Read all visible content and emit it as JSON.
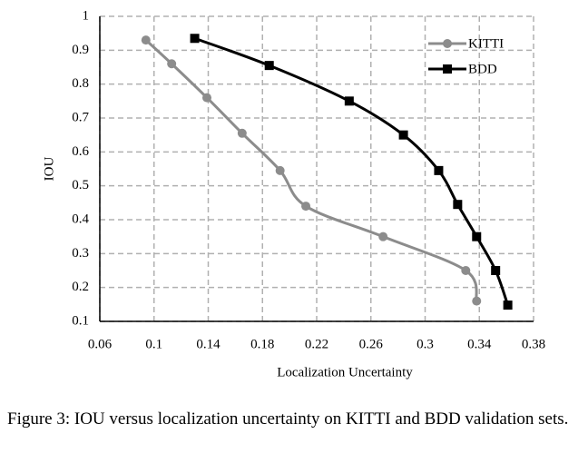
{
  "chart_data": {
    "type": "line",
    "x_label": "Localization Uncertainty",
    "y_label": "IOU",
    "xlim": [
      0.06,
      0.38
    ],
    "xticks": [
      0.06,
      0.1,
      0.14,
      0.18,
      0.22,
      0.26,
      0.3,
      0.34,
      0.38
    ],
    "ylim": [
      0.1,
      1
    ],
    "yticks": [
      0.1,
      0.2,
      0.3,
      0.4,
      0.5,
      0.6,
      0.7,
      0.8,
      0.9,
      1
    ],
    "grid": true,
    "legend": "upper right",
    "series": [
      {
        "name": "KITTI",
        "color": "#8c8c8c",
        "marker": "circle",
        "x": [
          0.094,
          0.113,
          0.139,
          0.165,
          0.193,
          0.212,
          0.269,
          0.33,
          0.338
        ],
        "values": [
          0.93,
          0.86,
          0.76,
          0.655,
          0.545,
          0.44,
          0.35,
          0.25,
          0.16
        ]
      },
      {
        "name": "BDD",
        "color": "#000000",
        "marker": "square",
        "x": [
          0.13,
          0.185,
          0.244,
          0.284,
          0.31,
          0.324,
          0.338,
          0.352,
          0.361
        ],
        "values": [
          0.935,
          0.855,
          0.75,
          0.65,
          0.545,
          0.445,
          0.35,
          0.25,
          0.148
        ]
      }
    ]
  },
  "caption": "Figure 3: IOU versus localization uncertainty on KITTI and BDD validation sets."
}
